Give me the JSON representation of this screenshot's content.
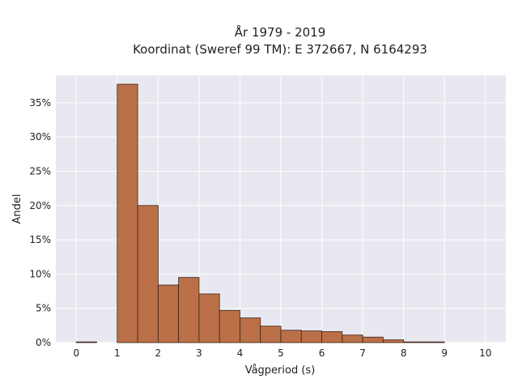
{
  "chart_data": {
    "type": "bar",
    "title": "År 1979 - 2019",
    "subtitle": "Koordinat (Sweref 99 TM): E 372667, N 6164293",
    "xlabel": "Vågperiod (s)",
    "ylabel": "Andel",
    "xlim": [
      -0.5,
      10.5
    ],
    "ylim": [
      0,
      39
    ],
    "xticks": [
      0,
      1,
      2,
      3,
      4,
      5,
      6,
      7,
      8,
      9,
      10
    ],
    "xtick_labels": [
      "0",
      "1",
      "2",
      "3",
      "4",
      "5",
      "6",
      "7",
      "8",
      "9",
      "10"
    ],
    "yticks": [
      0,
      5,
      10,
      15,
      20,
      25,
      30,
      35
    ],
    "ytick_labels": [
      "0%",
      "5%",
      "10%",
      "15%",
      "20%",
      "25%",
      "30%",
      "35%"
    ],
    "bin_width": 0.5,
    "bins": [
      {
        "start": 0.0,
        "end": 0.5,
        "value": 0.1
      },
      {
        "start": 0.5,
        "end": 1.0,
        "value": 0
      },
      {
        "start": 1.0,
        "end": 1.5,
        "value": 37.7
      },
      {
        "start": 1.5,
        "end": 2.0,
        "value": 20.0
      },
      {
        "start": 2.0,
        "end": 2.5,
        "value": 8.4
      },
      {
        "start": 2.5,
        "end": 3.0,
        "value": 9.5
      },
      {
        "start": 3.0,
        "end": 3.5,
        "value": 7.1
      },
      {
        "start": 3.5,
        "end": 4.0,
        "value": 4.7
      },
      {
        "start": 4.0,
        "end": 4.5,
        "value": 3.6
      },
      {
        "start": 4.5,
        "end": 5.0,
        "value": 2.4
      },
      {
        "start": 5.0,
        "end": 5.5,
        "value": 1.8
      },
      {
        "start": 5.5,
        "end": 6.0,
        "value": 1.7
      },
      {
        "start": 6.0,
        "end": 6.5,
        "value": 1.6
      },
      {
        "start": 6.5,
        "end": 7.0,
        "value": 1.1
      },
      {
        "start": 7.0,
        "end": 7.5,
        "value": 0.8
      },
      {
        "start": 7.5,
        "end": 8.0,
        "value": 0.4
      },
      {
        "start": 8.0,
        "end": 8.5,
        "value": 0.1
      },
      {
        "start": 8.5,
        "end": 9.0,
        "value": 0.1
      }
    ],
    "grid": true,
    "colors": {
      "bar_fill": "#b8693d",
      "bar_stroke": "#3a2418",
      "plot_background": "#e8e8f0",
      "grid": "#ffffff"
    }
  }
}
